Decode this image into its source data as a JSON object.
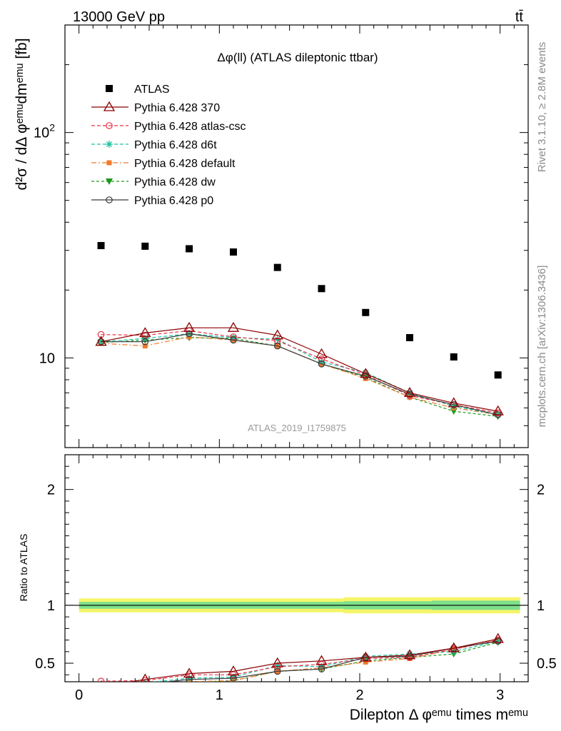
{
  "header": {
    "energy_label": "13000 GeV pp",
    "process_label": "tt̄"
  },
  "side": {
    "rivet_label": "Rivet 3.1.10, ≥ 2.8M events",
    "mcplots_label": "mcplots.cern.ch [arXiv:1306.3436]"
  },
  "colors": {
    "atlas": "#000000",
    "p370": "#8b0000",
    "atlas_csc": "#e8334a",
    "d6t": "#19c4a0",
    "default": "#f07a2a",
    "dw": "#1a9a1a",
    "p0": "#3a3a3a",
    "band_outer": "#f5f56a",
    "band_inner": "#7de08a"
  },
  "chart_data": [
    {
      "type": "line",
      "panel": "main",
      "title": "Δφ(ll) (ATLAS dileptonic ttbar)",
      "ylabel": "d²σ / dΔ φᵉᵐᵘdmᵉᵐᵘ [fb]",
      "yscale": "log",
      "ylim": [
        4.0,
        300
      ],
      "xlim": [
        -0.1,
        3.2
      ],
      "yticks": [
        {
          "v": 10,
          "label": "10"
        },
        {
          "v": 100,
          "label": "10²"
        }
      ],
      "watermark": "ATLAS_2019_I1759875",
      "legend_position": "top-left",
      "x": [
        0.157,
        0.471,
        0.785,
        1.1,
        1.414,
        1.728,
        2.042,
        2.356,
        2.67,
        2.985
      ],
      "series": [
        {
          "name": "ATLAS",
          "key": "atlas",
          "marker": "square",
          "values": [
            31.5,
            31.3,
            30.5,
            29.5,
            25.2,
            20.3,
            15.9,
            12.3,
            10.1,
            8.4
          ]
        },
        {
          "name": "Pythia 6.428 370",
          "key": "p370",
          "marker": "triangle-open",
          "dash": "",
          "values": [
            11.8,
            12.9,
            13.6,
            13.6,
            12.6,
            10.4,
            8.5,
            7.0,
            6.3,
            5.8
          ]
        },
        {
          "name": "Pythia 6.428 atlas-csc",
          "key": "atlas_csc",
          "marker": "circle-open",
          "dash": "5,3",
          "values": [
            12.7,
            12.6,
            13.2,
            12.4,
            11.9,
            9.9,
            8.4,
            6.8,
            6.2,
            5.7
          ]
        },
        {
          "name": "Pythia 6.428 d6t",
          "key": "d6t",
          "marker": "star",
          "dash": "5,3",
          "values": [
            11.8,
            12.2,
            12.8,
            12.3,
            12.1,
            9.6,
            8.6,
            7.0,
            6.1,
            5.6
          ]
        },
        {
          "name": "Pythia 6.428 default",
          "key": "default",
          "marker": "square-small",
          "dash": "7,3,2,3",
          "values": [
            11.6,
            11.3,
            12.4,
            12.0,
            11.3,
            9.4,
            8.1,
            6.7,
            6.0,
            5.6
          ]
        },
        {
          "name": "Pythia 6.428 dw",
          "key": "dw",
          "marker": "triangle-down",
          "dash": "4,3",
          "values": [
            11.7,
            12.0,
            12.3,
            12.2,
            11.3,
            9.4,
            8.2,
            6.7,
            5.8,
            5.5
          ]
        },
        {
          "name": "Pythia 6.428 p0",
          "key": "p0",
          "marker": "circle-open",
          "dash": "",
          "values": [
            11.8,
            11.8,
            12.8,
            12.0,
            11.3,
            9.4,
            8.3,
            6.9,
            6.2,
            5.6
          ]
        }
      ]
    },
    {
      "type": "line",
      "panel": "ratio",
      "ylabel": "Ratio to ATLAS",
      "xlabel": "Dilepton Δ φᵉᵐᵘ times mᵉᵐᵘ",
      "ylim": [
        0.34,
        2.3
      ],
      "xlim": [
        -0.1,
        3.2
      ],
      "xticks": [
        0,
        1,
        2,
        3
      ],
      "yticks": [
        {
          "v": 0.5,
          "label": "0.5"
        },
        {
          "v": 1,
          "label": "1"
        },
        {
          "v": 2,
          "label": "2"
        }
      ],
      "band_outer": [
        0.06,
        0.06,
        0.06,
        0.06,
        0.06,
        0.06,
        0.07,
        0.07,
        0.07,
        0.07
      ],
      "band_inner": [
        0.03,
        0.03,
        0.03,
        0.03,
        0.03,
        0.03,
        0.035,
        0.035,
        0.04,
        0.04
      ],
      "x": [
        0.157,
        0.471,
        0.785,
        1.1,
        1.414,
        1.728,
        2.042,
        2.356,
        2.67,
        2.985
      ],
      "series": [
        {
          "key": "p370",
          "values": [
            0.3,
            0.36,
            0.41,
            0.43,
            0.5,
            0.52,
            0.55,
            0.57,
            0.63,
            0.71
          ]
        },
        {
          "key": "atlas_csc",
          "values": [
            0.345,
            0.35,
            0.4,
            0.4,
            0.47,
            0.49,
            0.54,
            0.55,
            0.62,
            0.7
          ]
        },
        {
          "key": "d6t",
          "values": [
            0.3,
            0.33,
            0.37,
            0.38,
            0.48,
            0.47,
            0.56,
            0.58,
            0.6,
            0.69
          ]
        },
        {
          "key": "default",
          "values": [
            0.29,
            0.32,
            0.34,
            0.35,
            0.43,
            0.46,
            0.51,
            0.54,
            0.62,
            0.7
          ]
        },
        {
          "key": "dw",
          "values": [
            0.29,
            0.32,
            0.33,
            0.35,
            0.43,
            0.45,
            0.52,
            0.55,
            0.58,
            0.68
          ]
        },
        {
          "key": "p0",
          "values": [
            0.3,
            0.32,
            0.36,
            0.37,
            0.43,
            0.45,
            0.55,
            0.56,
            0.63,
            0.69
          ]
        }
      ]
    }
  ]
}
